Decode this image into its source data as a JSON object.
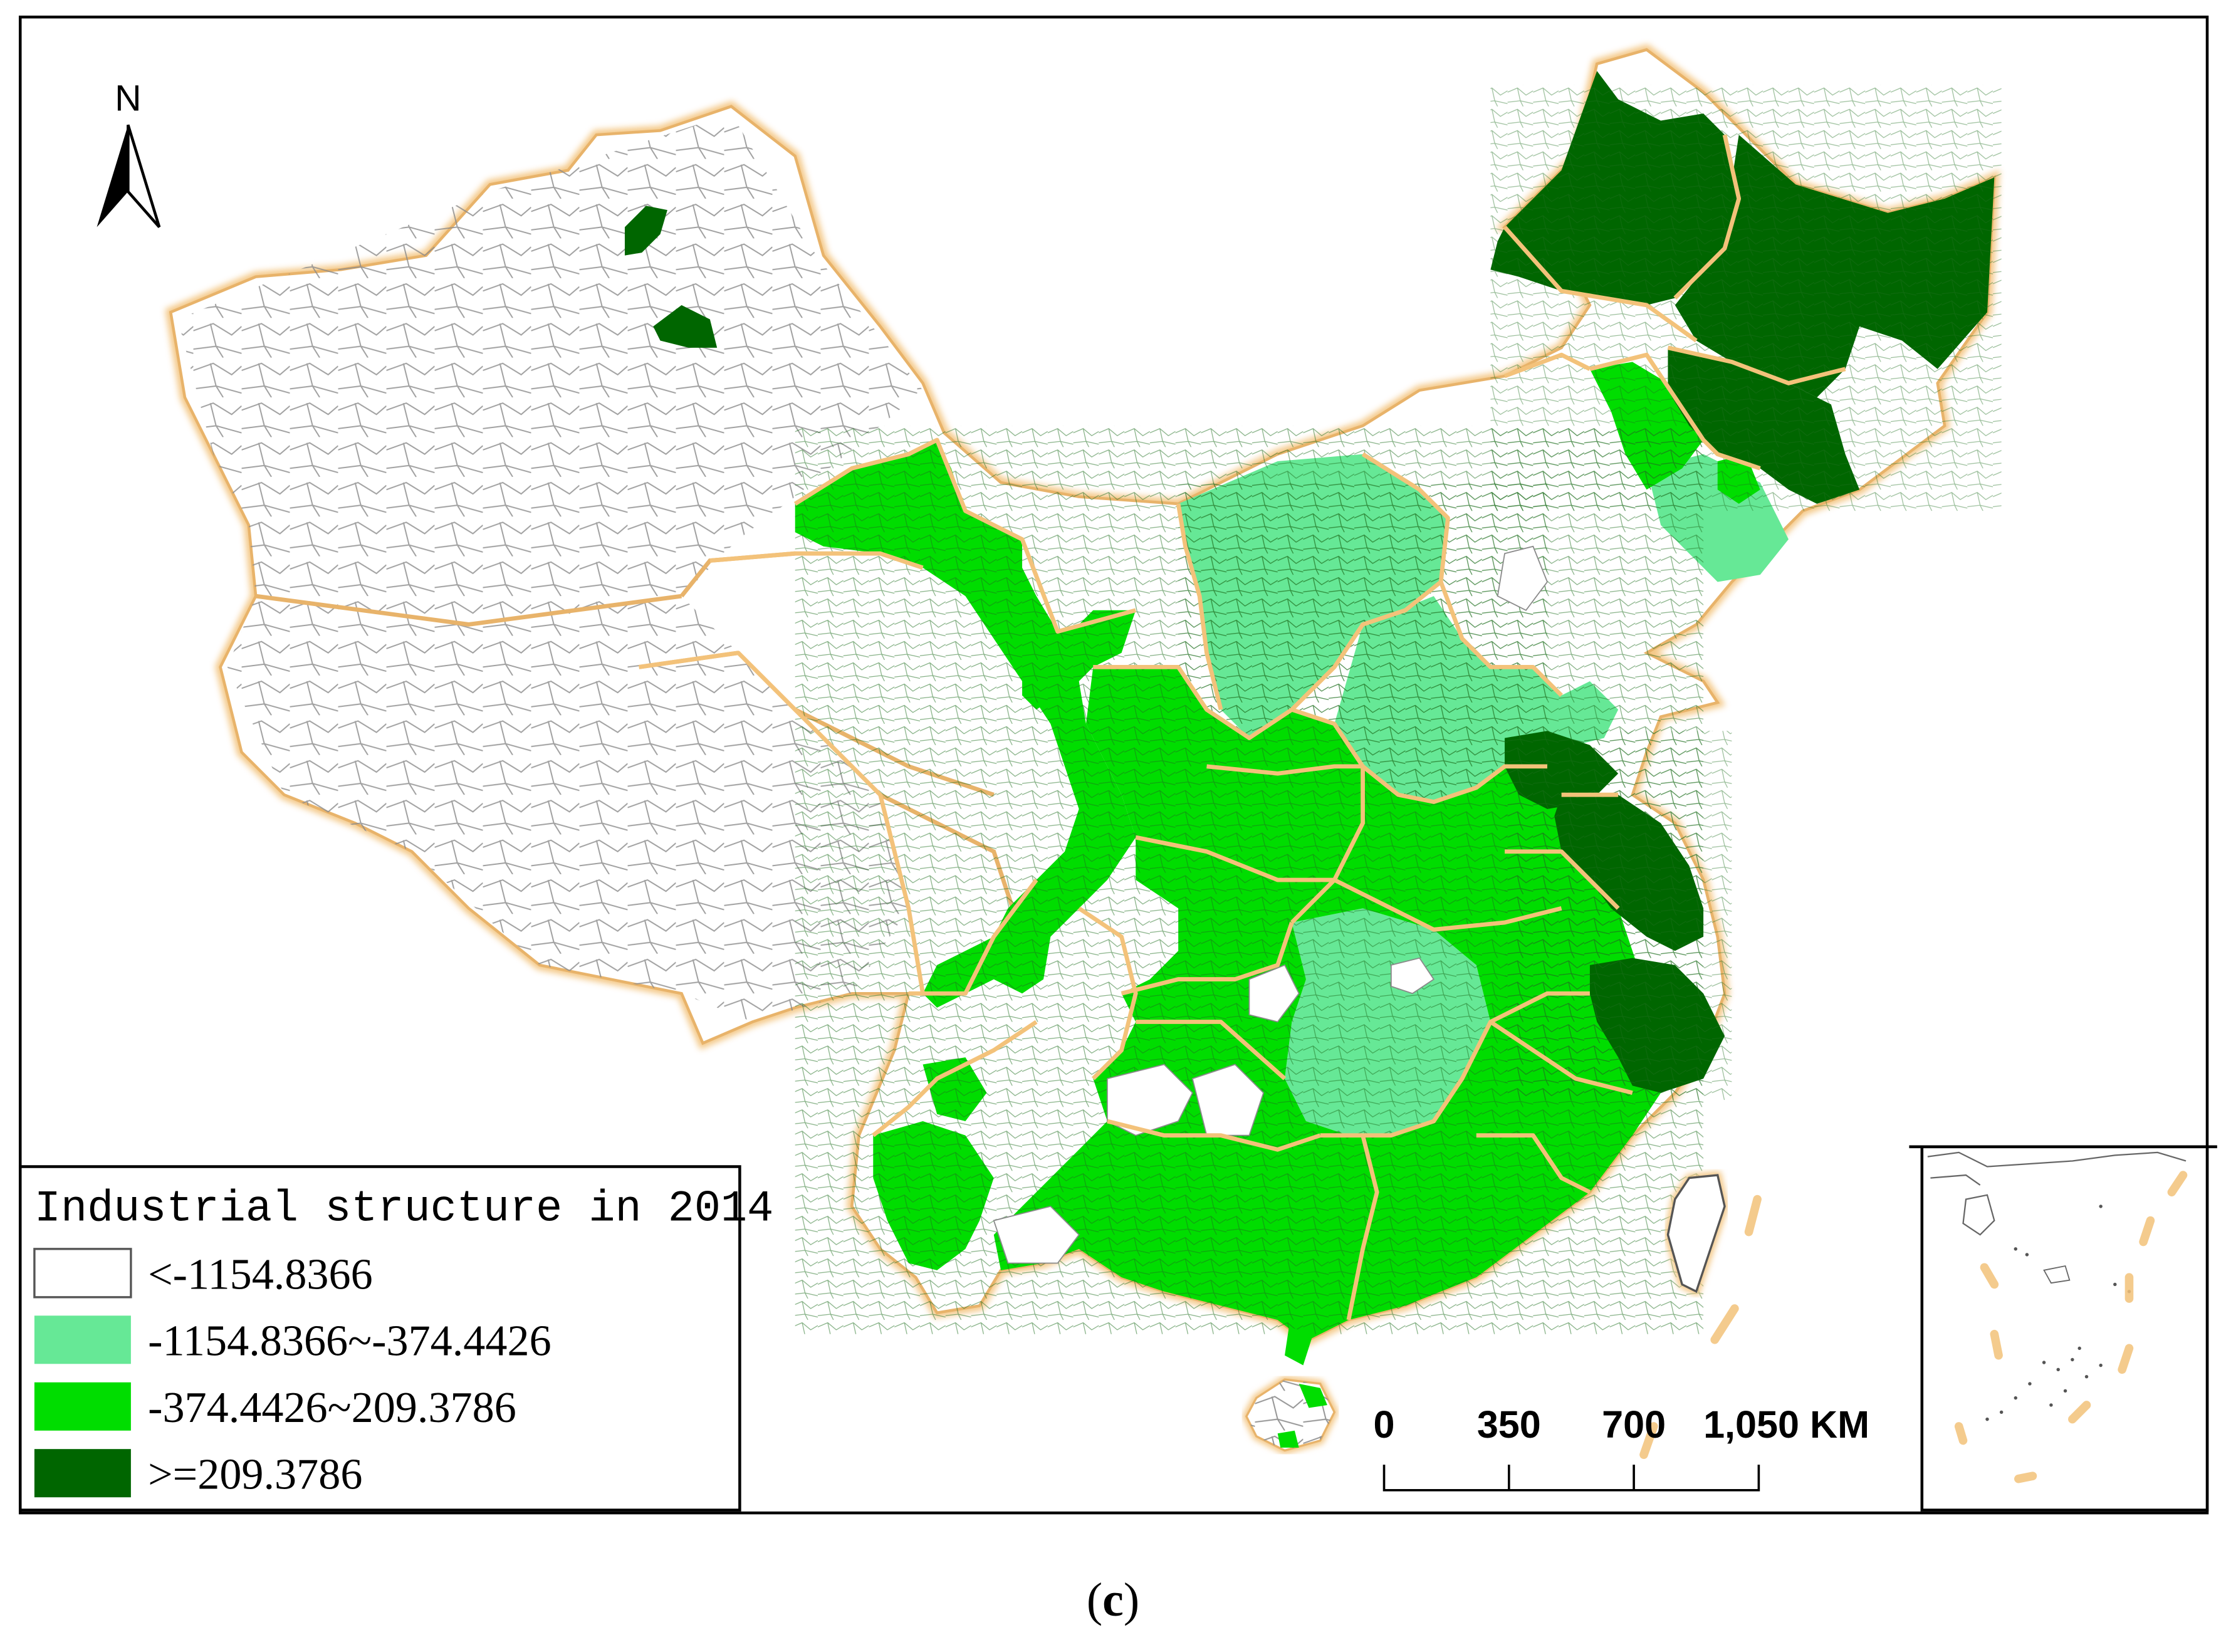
{
  "north_arrow": {
    "label": "N"
  },
  "legend": {
    "title": "Industrial structure in 2014",
    "items": [
      {
        "label": "<-1154.8366",
        "color": "#ffffff"
      },
      {
        "label": "-1154.8366~-374.4426",
        "color": "#66e896"
      },
      {
        "label": "-374.4426~209.3786",
        "color": "#00dd00"
      },
      {
        "label": ">=209.3786",
        "color": "#006600"
      }
    ]
  },
  "scale_bar": {
    "labels": [
      "0",
      "350",
      "700",
      "1,050 KM"
    ]
  },
  "colors": {
    "province_border": "#f3c27a",
    "county_line": "#7a7a7a",
    "frame": "#000000"
  },
  "caption": {
    "open": "(",
    "letter": "c",
    "close": ")"
  }
}
